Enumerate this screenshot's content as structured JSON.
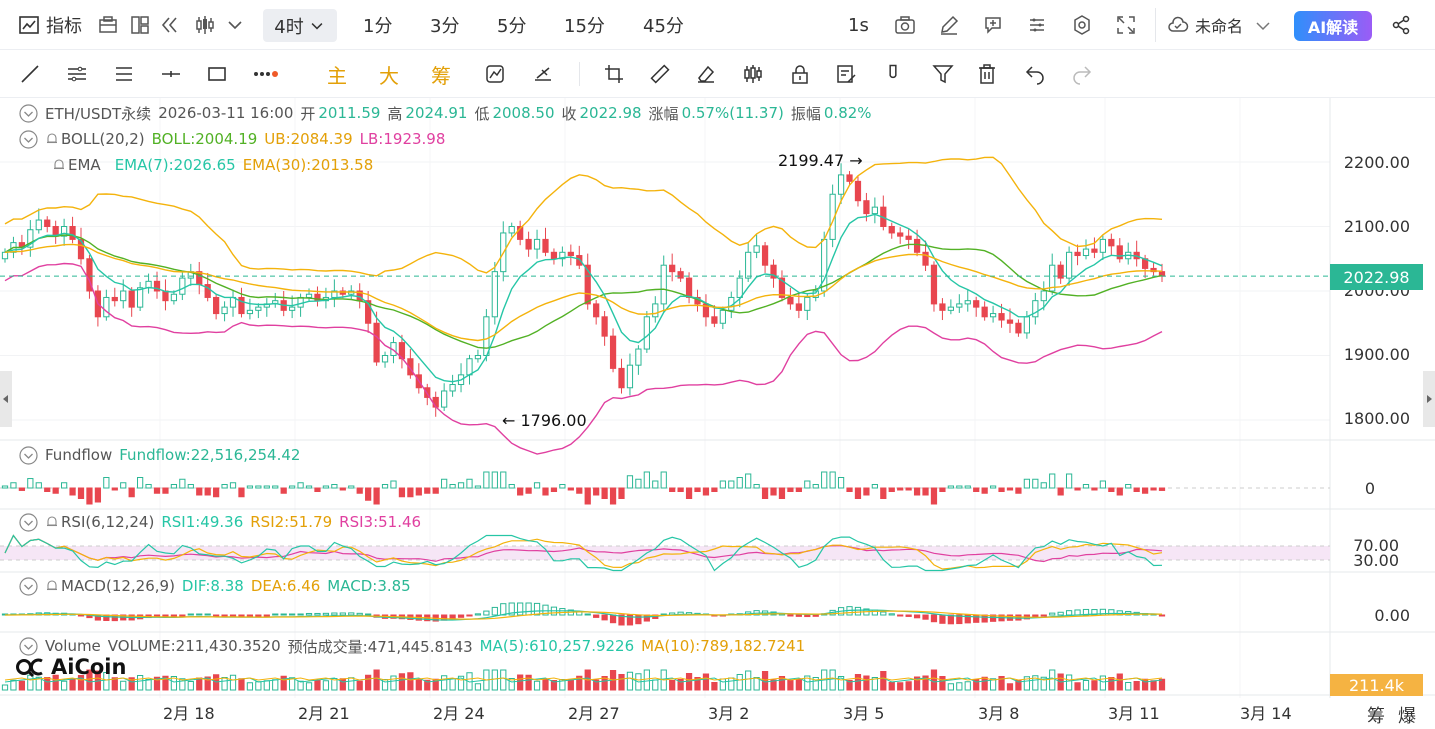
{
  "toolbar1": {
    "indicators_label": "指标",
    "interval_selected": "4时",
    "intervals": [
      "1分",
      "3分",
      "5分",
      "15分",
      "45分"
    ],
    "speed_label": "1s",
    "layout_name": "未命名",
    "ai_label": "AI解读"
  },
  "toolbar2": {
    "main_label": "主",
    "sub_label": "大",
    "chip_label": "筹"
  },
  "legend": {
    "symbol": "ETH/USDT永续",
    "datetime": "2026-03-11 16:00",
    "open_label": "开",
    "open": "2011.59",
    "high_label": "高",
    "high": "2024.91",
    "low_label": "低",
    "low": "2008.50",
    "close_label": "收",
    "close": "2022.98",
    "change_label": "涨幅",
    "change": "0.57%(11.37)",
    "amp_label": "振幅",
    "amp": "0.82%",
    "boll_name": "BOLL(20,2)",
    "boll": "BOLL:2004.19",
    "ub": "UB:2084.39",
    "lb": "LB:1923.98",
    "ema_name": "EMA",
    "ema7": "EMA(7):2026.65",
    "ema30": "EMA(30):2013.58",
    "fundflow_name": "Fundflow",
    "fundflow": "Fundflow:22,516,254.42",
    "rsi_name": "RSI(6,12,24)",
    "rsi1": "RSI1:49.36",
    "rsi2": "RSI2:51.79",
    "rsi3": "RSI3:51.46",
    "macd_name": "MACD(12,26,9)",
    "dif": "DIF:8.38",
    "dea": "DEA:6.46",
    "macd": "MACD:3.85",
    "volume_name": "Volume",
    "volume": "VOLUME:211,430.3520",
    "est_volume": "预估成交量:471,445.8143",
    "vma5": "MA(5):610,257.9226",
    "vma10": "MA(10):789,182.7241"
  },
  "price_axis": [
    "2200.00",
    "2100.00",
    "2000.00",
    "1900.00",
    "1800.00"
  ],
  "current_price": "2022.98",
  "fund_axis": "0",
  "rsi_axis": [
    "70.00",
    "30.00"
  ],
  "macd_axis": "0.00",
  "volume_tag": "211.4k",
  "annotations": {
    "high_marker": "2199.47",
    "low_marker": "1796.00"
  },
  "time_axis": [
    "2月 18",
    "2月 21",
    "2月 24",
    "2月 27",
    "3月 2",
    "3月 5",
    "3月 8",
    "3月 11",
    "3月 14"
  ],
  "bottom_right": [
    "筹",
    "爆"
  ],
  "logo": "AiCoin",
  "colors": {
    "up": "#2bb795",
    "down": "#e8464f",
    "boll_mid": "#52b125",
    "boll_band": "#f4b30c",
    "lb": "#e040a0",
    "ema7": "#26c6a6",
    "ema30": "#f4b30c",
    "accent": "#2f8ffb"
  },
  "chart_data": {
    "type": "candlestick",
    "price_range": [
      1760,
      2230
    ],
    "price_grid": [
      2200,
      2100,
      2000,
      1900,
      1800
    ],
    "last_close": 2022.98,
    "high": 2199.47,
    "low": 1796.0,
    "rsi_levels": [
      70,
      30
    ],
    "closes": [
      2060,
      2075,
      2068,
      2095,
      2110,
      2100,
      2085,
      2100,
      2080,
      2050,
      2000,
      1960,
      1990,
      1985,
      2000,
      1975,
      2005,
      2015,
      2000,
      1985,
      1995,
      2020,
      2030,
      2010,
      1990,
      1965,
      1975,
      1990,
      1965,
      1970,
      1975,
      1980,
      1985,
      1970,
      1975,
      1990,
      1995,
      1985,
      1990,
      2000,
      1995,
      2000,
      1985,
      1950,
      1890,
      1900,
      1920,
      1895,
      1870,
      1850,
      1835,
      1820,
      1845,
      1855,
      1870,
      1895,
      1900,
      1960,
      2030,
      2090,
      2100,
      2080,
      2065,
      2080,
      2060,
      2050,
      2060,
      2055,
      2040,
      1980,
      1960,
      1930,
      1880,
      1850,
      1885,
      1910,
      1960,
      1980,
      2040,
      2030,
      2020,
      1990,
      1980,
      1960,
      1950,
      1970,
      1990,
      2020,
      2060,
      2070,
      2040,
      2020,
      1990,
      1980,
      1970,
      1990,
      2000,
      2080,
      2150,
      2180,
      2170,
      2140,
      2120,
      2130,
      2100,
      2090,
      2085,
      2080,
      2060,
      2040,
      1980,
      1970,
      1975,
      1980,
      1985,
      1975,
      1960,
      1965,
      1955,
      1950,
      1935,
      1960,
      1985,
      2000,
      2040,
      2020,
      2060,
      2055,
      2065,
      2060,
      2080,
      2070,
      2050,
      2060,
      2050,
      2035,
      2030,
      2023
    ]
  }
}
